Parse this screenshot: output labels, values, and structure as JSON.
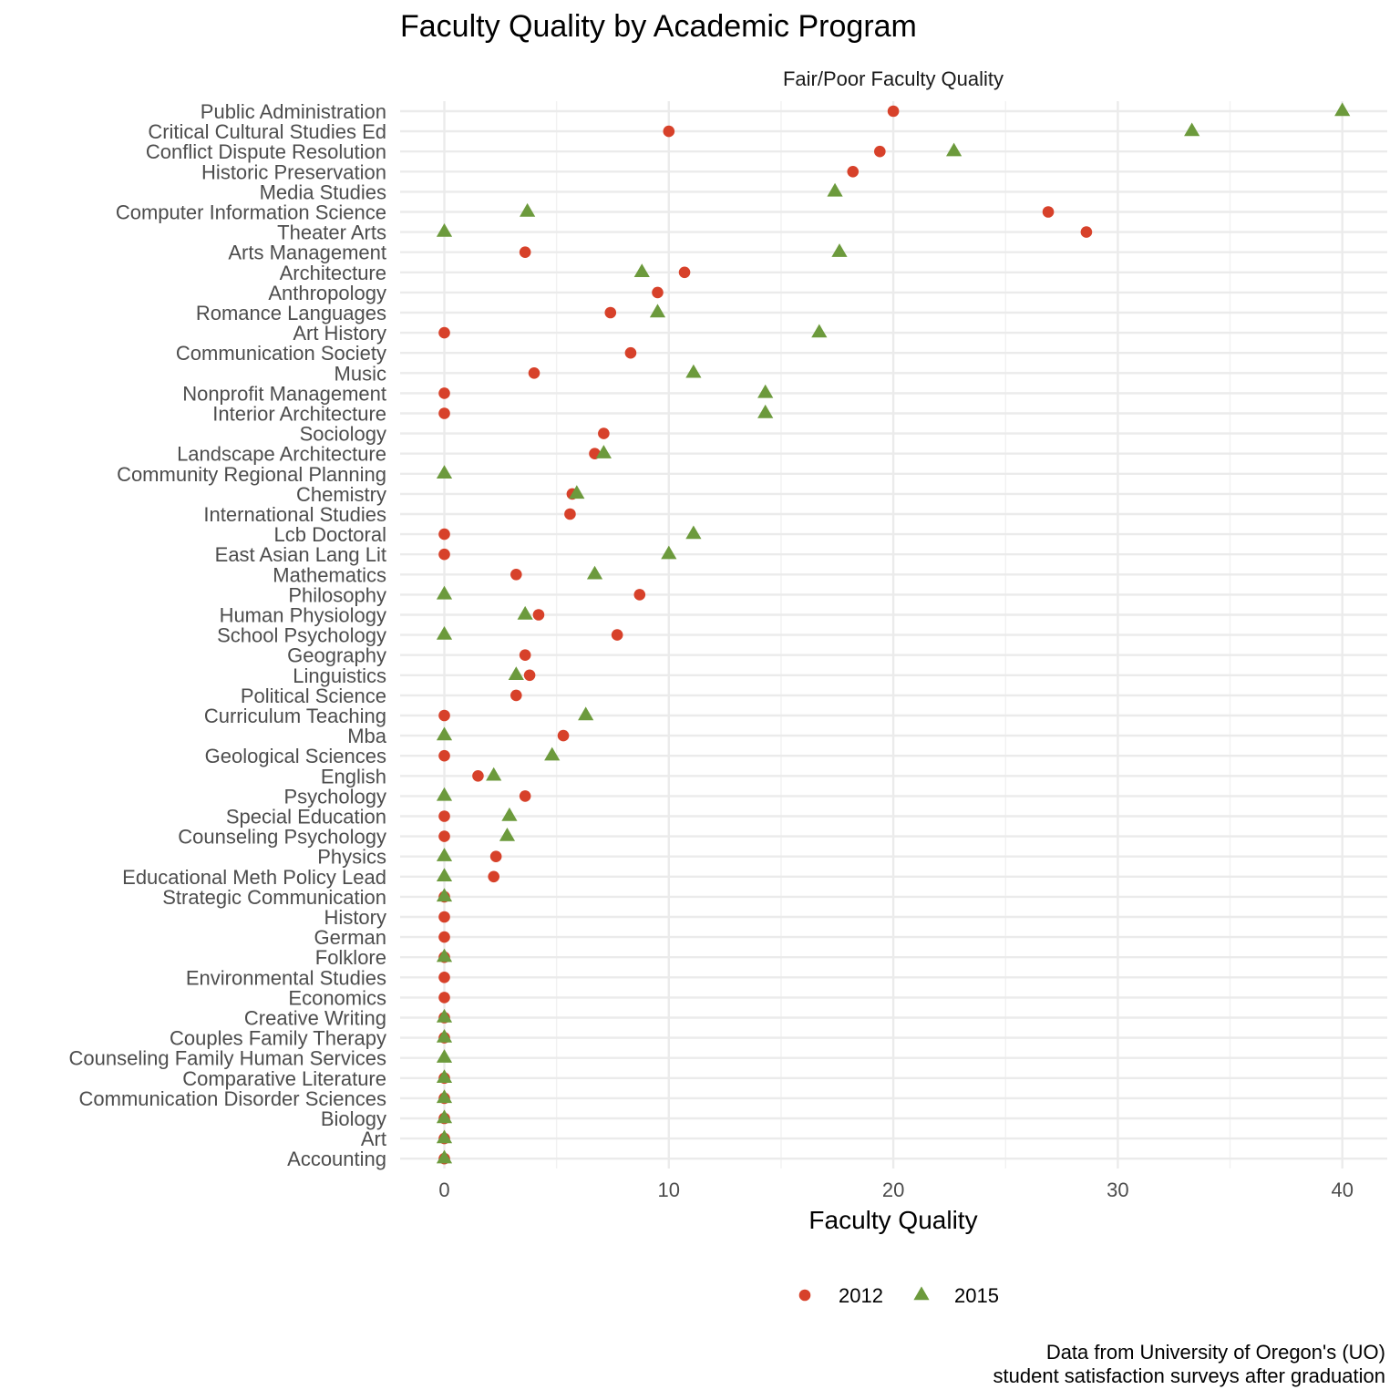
{
  "chart_data": {
    "type": "scatter",
    "title": "Faculty Quality by Academic Program",
    "panel_title": "Fair/Poor Faculty Quality",
    "xlabel": "Faculty Quality",
    "ylabel": "",
    "xlim": [
      -2,
      41.2
    ],
    "x_ticks": [
      0,
      10,
      20,
      30,
      40
    ],
    "grid": true,
    "legend_position": "bottom",
    "caption": [
      "Data from University of Oregon's (UO)",
      "student satisfaction surveys after graduation"
    ],
    "colors": {
      "2012": "#d7412a",
      "2015": "#6c9a3c"
    },
    "categories": [
      "Public Administration",
      "Critical Cultural Studies Ed",
      "Conflict Dispute Resolution",
      "Historic Preservation",
      "Media Studies",
      "Computer Information Science",
      "Theater Arts",
      "Arts Management",
      "Architecture",
      "Anthropology",
      "Romance Languages",
      "Art History",
      "Communication Society",
      "Music",
      "Nonprofit Management",
      "Interior Architecture",
      "Sociology",
      "Landscape Architecture",
      "Community Regional Planning",
      "Chemistry",
      "International Studies",
      "Lcb Doctoral",
      "East Asian Lang Lit",
      "Mathematics",
      "Philosophy",
      "Human Physiology",
      "School Psychology",
      "Geography",
      "Linguistics",
      "Political Science",
      "Curriculum Teaching",
      "Mba",
      "Geological Sciences",
      "English",
      "Psychology",
      "Special Education",
      "Counseling Psychology",
      "Physics",
      "Educational Meth Policy Lead",
      "Strategic Communication",
      "History",
      "German",
      "Folklore",
      "Environmental Studies",
      "Economics",
      "Creative Writing",
      "Couples Family Therapy",
      "Counseling Family Human Services",
      "Comparative Literature",
      "Communication Disorder Sciences",
      "Biology",
      "Art",
      "Accounting"
    ],
    "series": [
      {
        "name": "2012",
        "shape": "circle",
        "values": [
          20.0,
          10.0,
          19.4,
          18.2,
          null,
          26.9,
          28.6,
          3.6,
          10.7,
          9.5,
          7.4,
          0,
          8.3,
          4.0,
          0,
          0,
          7.1,
          6.7,
          null,
          5.7,
          5.6,
          0,
          0,
          3.2,
          8.7,
          4.2,
          7.7,
          3.6,
          3.8,
          3.2,
          0,
          5.3,
          0,
          1.5,
          3.6,
          0,
          0,
          2.3,
          2.2,
          0,
          0,
          0,
          0,
          0,
          0,
          0,
          0,
          null,
          0,
          0,
          0,
          0,
          0
        ]
      },
      {
        "name": "2015",
        "shape": "triangle",
        "values": [
          40.0,
          33.3,
          22.7,
          null,
          17.4,
          3.7,
          0,
          17.6,
          8.8,
          null,
          9.5,
          16.7,
          null,
          11.1,
          14.3,
          14.3,
          null,
          7.1,
          0,
          5.9,
          null,
          11.1,
          10.0,
          6.7,
          0,
          3.6,
          0,
          null,
          3.2,
          null,
          6.3,
          0,
          4.8,
          2.2,
          0,
          2.9,
          2.8,
          0,
          0,
          0,
          null,
          null,
          0,
          null,
          null,
          0,
          0,
          0,
          0,
          0,
          0,
          0,
          0
        ]
      }
    ]
  }
}
